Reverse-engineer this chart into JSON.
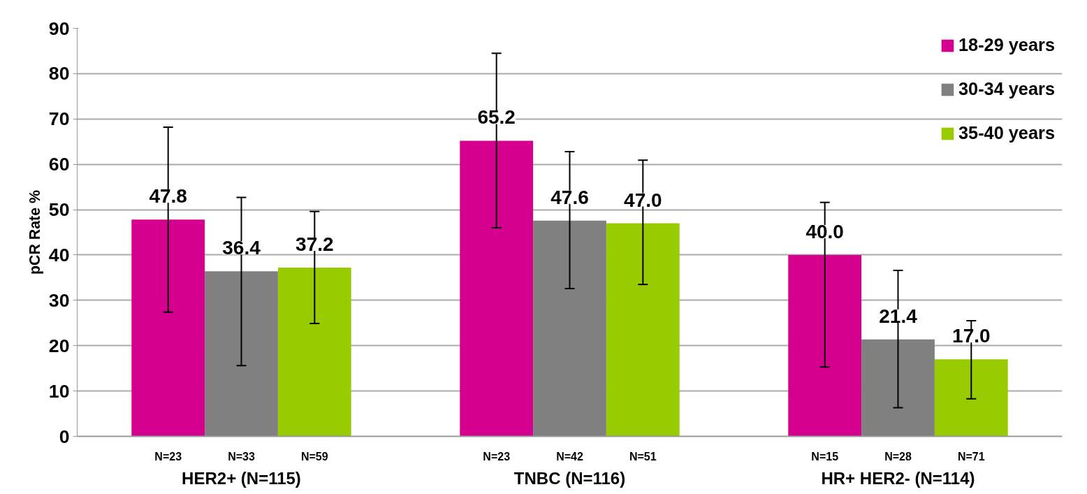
{
  "chart_data": {
    "type": "bar",
    "ylabel": "pCR Rate %",
    "categories": [
      "HER2+ (N=115)",
      "TNBC (N=116)",
      "HR+ HER2- (N=114)"
    ],
    "series": [
      {
        "name": "18-29 years",
        "color": "#d6008f",
        "values": [
          47.8,
          65.2,
          40.0
        ],
        "value_labels": [
          "47.8",
          "65.2",
          "40.0"
        ],
        "errors": [
          [
            27.4,
            68.2
          ],
          [
            46.0,
            84.5
          ],
          [
            15.3,
            51.6
          ]
        ]
      },
      {
        "name": "30-34 years",
        "color": "#808080",
        "values": [
          36.4,
          47.6,
          21.4
        ],
        "value_labels": [
          "36.4",
          "47.6",
          "21.4"
        ],
        "errors": [
          [
            15.6,
            52.7
          ],
          [
            32.6,
            62.8
          ],
          [
            6.3,
            36.6
          ]
        ]
      },
      {
        "name": "35-40 years",
        "color": "#99cc00",
        "values": [
          37.2,
          47.0,
          17.0
        ],
        "value_labels": [
          "37.2",
          "47.0",
          "17.0"
        ],
        "errors": [
          [
            24.9,
            49.6
          ],
          [
            33.5,
            60.9
          ],
          [
            8.3,
            25.5
          ]
        ]
      }
    ],
    "annotations": [
      "N=23",
      "N=33",
      "N=59",
      "N=23",
      "N=42",
      "N=51",
      "N=15",
      "N=28",
      "N=71"
    ],
    "ylim": [
      0,
      90
    ],
    "yticks": [
      0,
      10,
      20,
      30,
      40,
      50,
      60,
      70,
      80,
      90
    ],
    "grid": "y",
    "legend": "top right"
  }
}
